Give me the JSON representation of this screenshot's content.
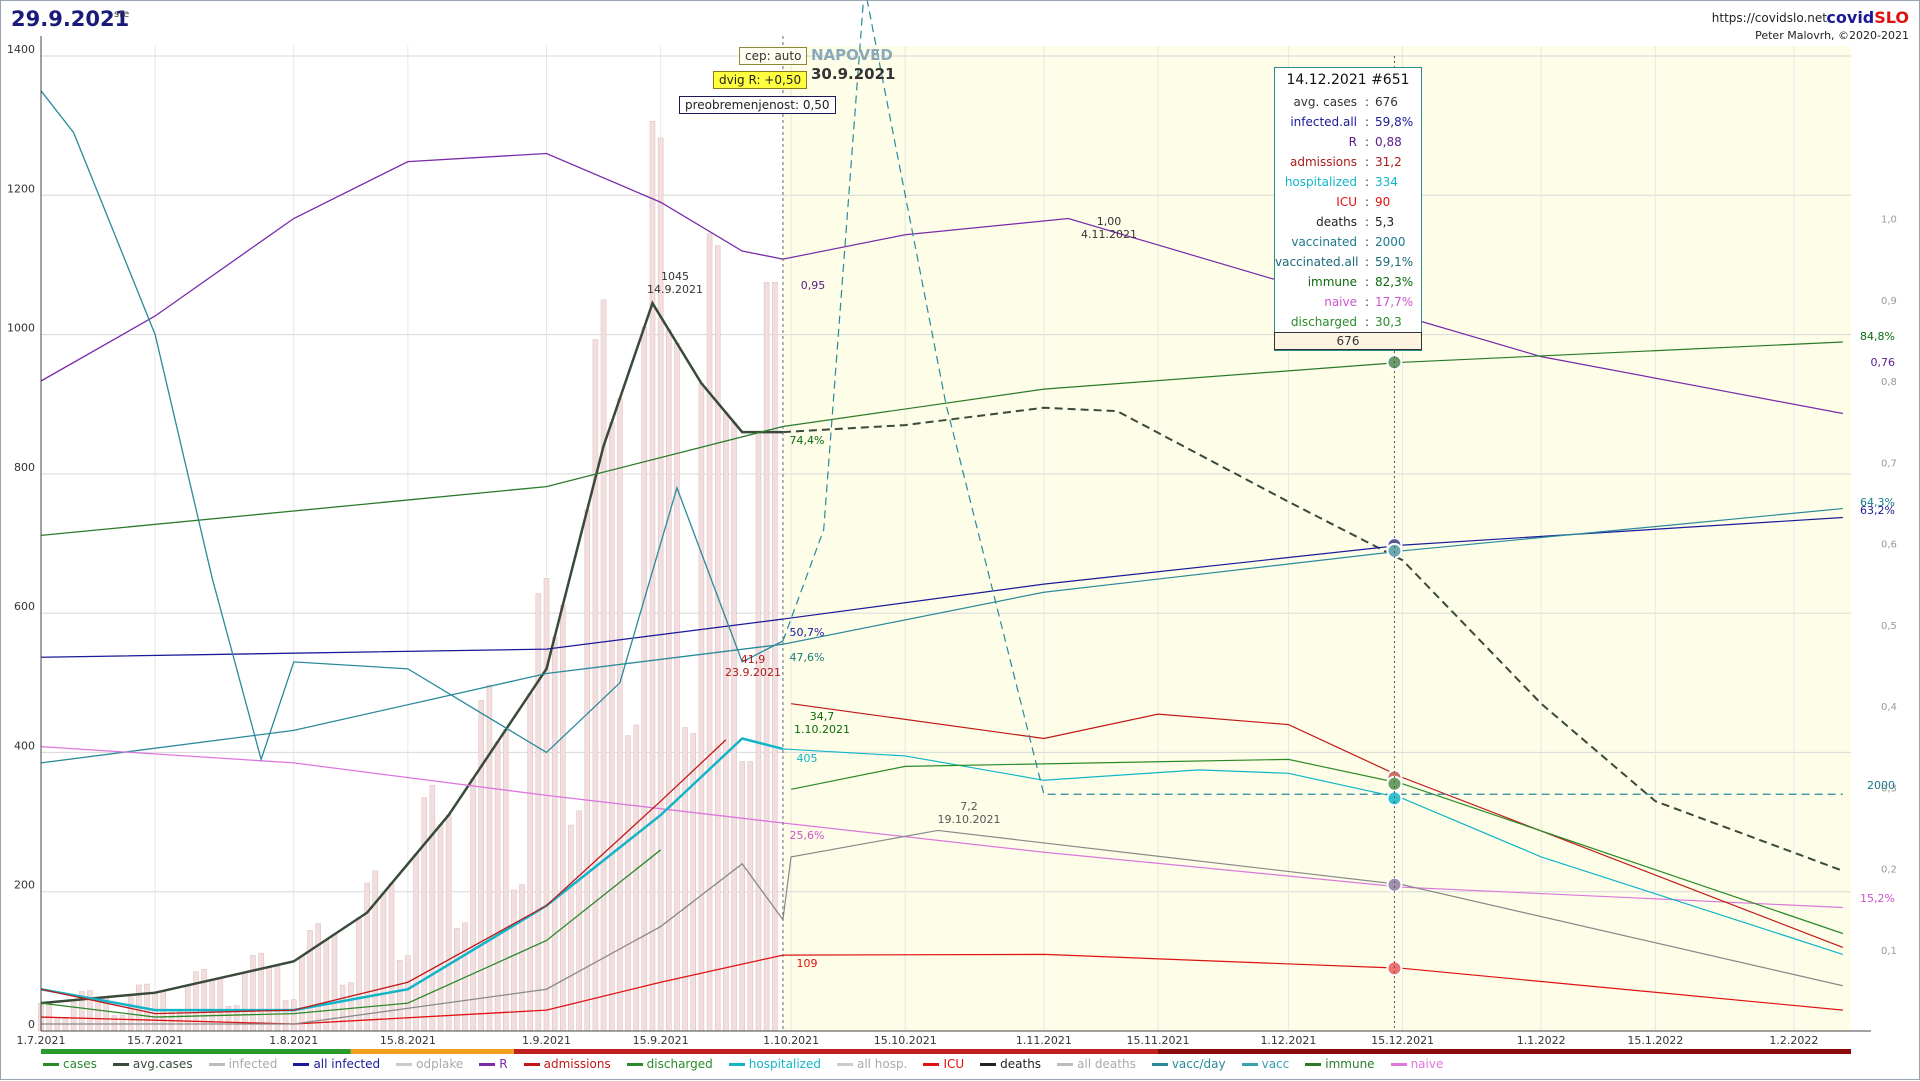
{
  "header": {
    "date": "29.9.2021",
    "weekday": "sre",
    "url": "https://covidslo.net",
    "brand_a": "covid",
    "brand_b": "SLO",
    "author": "Peter Malovrh, ©2020-2021"
  },
  "controls": {
    "strain": "cep: auto",
    "r_shift": "dvig R: +0,50",
    "overload": "preobremenjenost: 0,50",
    "forecast_label": "NAPOVED",
    "forecast_date": "30.9.2021"
  },
  "info_box": {
    "title": "14.12.2021 #651",
    "rows": [
      {
        "key": "avg. cases",
        "value": "676",
        "color": "#333333"
      },
      {
        "key": "infected.all",
        "value": "59,8%",
        "color": "#1a1a9a"
      },
      {
        "key": "R",
        "value": "0,88",
        "color": "#5a1a8a"
      },
      {
        "key": "admissions",
        "value": "31,2",
        "color": "#b01818"
      },
      {
        "key": "hospitalized",
        "value": "334",
        "color": "#12b5c8"
      },
      {
        "key": "ICU",
        "value": "90",
        "color": "#e01010"
      },
      {
        "key": "deaths",
        "value": "5,3",
        "color": "#222222"
      },
      {
        "key": "vaccinated",
        "value": "2000",
        "color": "#1a7a8a"
      },
      {
        "key": "vaccinated.all",
        "value": "59,1%",
        "color": "#1a6a7a"
      },
      {
        "key": "immune",
        "value": "82,3%",
        "color": "#0a6a0a"
      },
      {
        "key": "naive",
        "value": "17,7%",
        "color": "#cc55cc"
      },
      {
        "key": "discharged",
        "value": "30,3",
        "color": "#2a8a2a"
      }
    ],
    "footer": "676"
  },
  "legend": [
    {
      "label": "cases",
      "color": "#2a8a2a"
    },
    {
      "label": "avg.cases",
      "color": "#3a4a3a"
    },
    {
      "label": "infected",
      "color": "#bbbbbb"
    },
    {
      "label": "all infected",
      "color": "#1a1a9a"
    },
    {
      "label": "odplake",
      "color": "#cccccc"
    },
    {
      "label": "R",
      "color": "#7a2aaa"
    },
    {
      "label": "admissions",
      "color": "#c01818"
    },
    {
      "label": "discharged",
      "color": "#2a8a2a"
    },
    {
      "label": "hospitalized",
      "color": "#12b5c8"
    },
    {
      "label": "all hosp.",
      "color": "#cccccc"
    },
    {
      "label": "ICU",
      "color": "#e01010"
    },
    {
      "label": "deaths",
      "color": "#222222"
    },
    {
      "label": "all deaths",
      "color": "#bbbbbb"
    },
    {
      "label": "vacc/day",
      "color": "#2a8a9a"
    },
    {
      "label": "vacc",
      "color": "#3aa0b0"
    },
    {
      "label": "immune",
      "color": "#2a7a2a"
    },
    {
      "label": "naive",
      "color": "#dd77dd"
    }
  ],
  "chart_data": {
    "type": "line",
    "x_range": [
      "1.7.2021",
      "8.2.2022"
    ],
    "forecast_start": "30.9.2021",
    "marker_date": "14.12.2021",
    "ylim_left": [
      0,
      1400
    ],
    "ylim_right": [
      0,
      1.2
    ],
    "y_ticks_left": [
      0,
      200,
      400,
      600,
      800,
      1000,
      1200,
      1400
    ],
    "y_ticks_right": [
      "0,1",
      "0,2",
      "0,3",
      "0,4",
      "0,5",
      "0,6",
      "0,7",
      "0,8",
      "0,9",
      "1,0"
    ],
    "x_ticks": [
      "1.7.2021",
      "15.7.2021",
      "1.8.2021",
      "15.8.2021",
      "1.9.2021",
      "15.9.2021",
      "1.10.2021",
      "15.10.2021",
      "1.11.2021",
      "15.11.2021",
      "1.12.2021",
      "15.12.2021",
      "1.1.2022",
      "15.1.2022",
      "1.2.2022"
    ],
    "series": [
      {
        "name": "avg.cases",
        "color": "#3a4a3a",
        "points": [
          [
            "1.7.2021",
            40
          ],
          [
            "15.7.2021",
            55
          ],
          [
            "1.8.2021",
            100
          ],
          [
            "10.8.2021",
            170
          ],
          [
            "20.8.2021",
            310
          ],
          [
            "1.9.2021",
            520
          ],
          [
            "8.9.2021",
            840
          ],
          [
            "14.9.2021",
            1045
          ],
          [
            "20.9.2021",
            930
          ],
          [
            "25.9.2021",
            860
          ],
          [
            "30.9.2021",
            860
          ],
          [
            "15.10.2021",
            870
          ],
          [
            "1.11.2021",
            895
          ],
          [
            "10.11.2021",
            890
          ],
          [
            "1.12.2021",
            760
          ],
          [
            "15.12.2021",
            676
          ],
          [
            "1.1.2022",
            470
          ],
          [
            "15.1.2022",
            330
          ],
          [
            "7.2.2022",
            230
          ]
        ]
      },
      {
        "name": "R",
        "color": "#7a2aaa",
        "points": [
          [
            "1.7.2021",
            0.8
          ],
          [
            "15.7.2021",
            0.88
          ],
          [
            "1.8.2021",
            1.0
          ],
          [
            "15.8.2021",
            1.07
          ],
          [
            "1.9.2021",
            1.08
          ],
          [
            "15.9.2021",
            1.02
          ],
          [
            "25.9.2021",
            0.96
          ],
          [
            "30.9.2021",
            0.95
          ],
          [
            "15.10.2021",
            0.98
          ],
          [
            "4.11.2021",
            1.0
          ],
          [
            "1.12.2021",
            0.92
          ],
          [
            "15.12.2021",
            0.88
          ],
          [
            "1.1.2022",
            0.83
          ],
          [
            "7.2.2022",
            0.76
          ]
        ]
      },
      {
        "name": "immune",
        "color": "#2a7a2a",
        "points": [
          [
            "1.7.2021",
            0.61
          ],
          [
            "1.8.2021",
            0.64
          ],
          [
            "1.9.2021",
            0.67
          ],
          [
            "30.9.2021",
            0.744
          ],
          [
            "1.11.2021",
            0.79
          ],
          [
            "15.12.2021",
            0.823
          ],
          [
            "7.2.2022",
            0.848
          ]
        ]
      },
      {
        "name": "all infected",
        "color": "#1a1a9a",
        "points": [
          [
            "1.7.2021",
            0.46
          ],
          [
            "1.9.2021",
            0.47
          ],
          [
            "30.9.2021",
            0.507
          ],
          [
            "1.11.2021",
            0.55
          ],
          [
            "15.12.2021",
            0.598
          ],
          [
            "7.2.2022",
            0.632
          ]
        ]
      },
      {
        "name": "vacc",
        "color": "#2a8a9a",
        "points": [
          [
            "1.7.2021",
            0.33
          ],
          [
            "1.8.2021",
            0.37
          ],
          [
            "1.9.2021",
            0.44
          ],
          [
            "30.9.2021",
            0.476
          ],
          [
            "1.11.2021",
            0.54
          ],
          [
            "15.12.2021",
            0.591
          ],
          [
            "7.2.2022",
            0.643
          ]
        ]
      },
      {
        "name": "naive",
        "color": "#dd77dd",
        "points": [
          [
            "1.7.2021",
            0.35
          ],
          [
            "1.8.2021",
            0.33
          ],
          [
            "1.9.2021",
            0.29
          ],
          [
            "30.9.2021",
            0.256
          ],
          [
            "1.11.2021",
            0.22
          ],
          [
            "15.12.2021",
            0.177
          ],
          [
            "7.2.2022",
            0.152
          ]
        ]
      },
      {
        "name": "hospitalized",
        "color": "#12b5c8",
        "points": [
          [
            "1.7.2021",
            60
          ],
          [
            "15.7.2021",
            30
          ],
          [
            "1.8.2021",
            30
          ],
          [
            "15.8.2021",
            60
          ],
          [
            "1.9.2021",
            180
          ],
          [
            "15.9.2021",
            310
          ],
          [
            "25.9.2021",
            420
          ],
          [
            "30.9.2021",
            405
          ],
          [
            "15.10.2021",
            395
          ],
          [
            "1.11.2021",
            360
          ],
          [
            "20.11.2021",
            375
          ],
          [
            "1.12.2021",
            370
          ],
          [
            "15.12.2021",
            334
          ],
          [
            "1.1.2022",
            250
          ],
          [
            "7.2.2022",
            110
          ]
        ]
      },
      {
        "name": "admissions",
        "color": "#c01818",
        "points": [
          [
            "1.7.2021",
            60
          ],
          [
            "15.7.2021",
            25
          ],
          [
            "1.8.2021",
            30
          ],
          [
            "15.8.2021",
            70
          ],
          [
            "1.9.2021",
            180
          ],
          [
            "15.9.2021",
            330
          ],
          [
            "23.9.2021",
            418
          ],
          [
            "1.10.2021",
            470
          ],
          [
            "1.11.2021",
            420
          ],
          [
            "15.11.2021",
            455
          ],
          [
            "1.12.2021",
            440
          ],
          [
            "15.12.2021",
            364
          ],
          [
            "7.2.2022",
            120
          ]
        ]
      },
      {
        "name": "discharged",
        "color": "#2a8a2a",
        "points": [
          [
            "1.7.2021",
            40
          ],
          [
            "15.7.2021",
            20
          ],
          [
            "1.8.2021",
            25
          ],
          [
            "15.8.2021",
            40
          ],
          [
            "1.9.2021",
            130
          ],
          [
            "15.9.2021",
            260
          ],
          [
            "1.10.2021",
            347
          ],
          [
            "15.10.2021",
            380
          ],
          [
            "1.12.2021",
            390
          ],
          [
            "15.12.2021",
            355
          ],
          [
            "7.2.2022",
            140
          ]
        ]
      },
      {
        "name": "ICU",
        "color": "#e01010",
        "points": [
          [
            "1.7.2021",
            20
          ],
          [
            "1.8.2021",
            10
          ],
          [
            "1.9.2021",
            30
          ],
          [
            "15.9.2021",
            70
          ],
          [
            "30.9.2021",
            109
          ],
          [
            "1.11.2021",
            110
          ],
          [
            "15.12.2021",
            90
          ],
          [
            "7.2.2022",
            30
          ]
        ]
      },
      {
        "name": "deaths",
        "color": "#888888",
        "points": [
          [
            "1.7.2021",
            10
          ],
          [
            "1.8.2021",
            10
          ],
          [
            "1.9.2021",
            60
          ],
          [
            "15.9.2021",
            150
          ],
          [
            "25.9.2021",
            240
          ],
          [
            "30.9.2021",
            160
          ],
          [
            "1.10.2021",
            250
          ],
          [
            "19.10.2021",
            288
          ],
          [
            "1.11.2021",
            270
          ],
          [
            "15.12.2021",
            210
          ],
          [
            "7.2.2022",
            65
          ]
        ]
      },
      {
        "name": "vacc/day",
        "color": "#2a8a9a",
        "points": [
          [
            "1.7.2021",
            1350
          ],
          [
            "5.7.2021",
            1290
          ],
          [
            "15.7.2021",
            1000
          ],
          [
            "22.7.2021",
            650
          ],
          [
            "28.7.2021",
            390
          ],
          [
            "1.8.2021",
            530
          ],
          [
            "15.8.2021",
            520
          ],
          [
            "1.9.2021",
            400
          ],
          [
            "10.9.2021",
            500
          ],
          [
            "17.9.2021",
            780
          ],
          [
            "25.9.2021",
            530
          ],
          [
            "30.9.2021",
            560
          ],
          [
            "5.10.2021",
            720
          ],
          [
            "10.10.2021",
            1500
          ],
          [
            "20.10.2021",
            900
          ],
          [
            "1.11.2021",
            340
          ],
          [
            "7.2.2022",
            340
          ]
        ]
      }
    ],
    "annotations": [
      {
        "text": "1045",
        "sub": "14.9.2021"
      },
      {
        "text": "1,00",
        "sub": "4.11.2021"
      },
      {
        "text": "0,95"
      },
      {
        "text": "74,4%"
      },
      {
        "text": "50,7%"
      },
      {
        "text": "47,6%"
      },
      {
        "text": "41,9",
        "sub": "23.9.2021"
      },
      {
        "text": "34,7",
        "sub": "1.10.2021"
      },
      {
        "text": "405"
      },
      {
        "text": "25,6%"
      },
      {
        "text": "109"
      },
      {
        "text": "7,2",
        "sub": "19.10.2021"
      },
      {
        "text": "84,8%"
      },
      {
        "text": "0,76"
      },
      {
        "text": "64,3%"
      },
      {
        "text": "63,2%"
      },
      {
        "text": "2000"
      },
      {
        "text": "15,2%"
      }
    ]
  }
}
